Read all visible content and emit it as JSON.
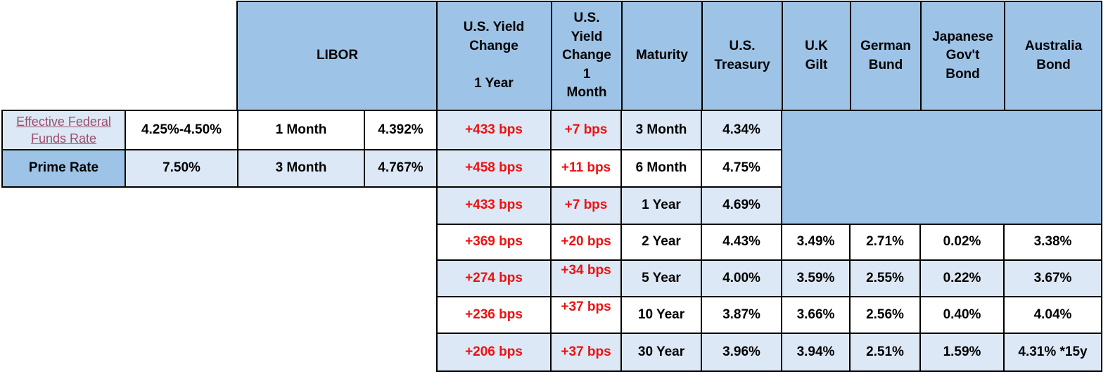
{
  "headers": {
    "libor": "LIBOR",
    "us_yield_change_1y": [
      "U.S. Yield",
      "Change",
      "",
      "1 Year"
    ],
    "us_yield_change_1m": [
      "U.S.",
      "Yield",
      "Change",
      "1",
      "Month"
    ],
    "maturity": "Maturity",
    "us_treasury": [
      "U.S.",
      "Treasury"
    ],
    "uk_gilt": [
      "U.K",
      "Gilt"
    ],
    "german_bund": [
      "German",
      "Bund"
    ],
    "japanese_bond": [
      "Japanese",
      "Gov't",
      "Bond"
    ],
    "australia_bond": [
      "Australia",
      "Bond"
    ]
  },
  "rates": [
    {
      "label": [
        "Effective Federal",
        "Funds Rate"
      ],
      "value": "4.25%-4.50%",
      "libor_term": "1 Month",
      "libor_value": "4.392%"
    },
    {
      "label": [
        "Prime Rate"
      ],
      "value": "7.50%",
      "libor_term": "3 Month",
      "libor_value": "4.767%"
    }
  ],
  "yields": [
    {
      "change_1y": "+433 bps",
      "change_1m": "+7 bps",
      "maturity": "3 Month",
      "us_treasury": "4.34%"
    },
    {
      "change_1y": "+458 bps",
      "change_1m": "+11 bps",
      "maturity": "6 Month",
      "us_treasury": "4.75%"
    },
    {
      "change_1y": "+433 bps",
      "change_1m": "+7 bps",
      "maturity": "1 Year",
      "us_treasury": "4.69%"
    },
    {
      "change_1y": "+369 bps",
      "change_1m": "+20 bps",
      "maturity": "2 Year",
      "us_treasury": "4.43%",
      "uk_gilt": "3.49%",
      "german_bund": "2.71%",
      "japanese_bond": "0.02%",
      "australia_bond": "3.38%"
    },
    {
      "change_1y": "+274 bps",
      "change_1m": "+34 bps",
      "maturity": "5 Year",
      "us_treasury": "4.00%",
      "uk_gilt": "3.59%",
      "german_bund": "2.55%",
      "japanese_bond": "0.22%",
      "australia_bond": "3.67%"
    },
    {
      "change_1y": "+236 bps",
      "change_1m": "+37 bps",
      "maturity": "10 Year",
      "us_treasury": "3.87%",
      "uk_gilt": "3.66%",
      "german_bund": "2.56%",
      "japanese_bond": "0.40%",
      "australia_bond": "4.04%"
    },
    {
      "change_1y": "+206 bps",
      "change_1m": "+37 bps",
      "maturity": "30 Year",
      "us_treasury": "3.96%",
      "uk_gilt": "3.94%",
      "german_bund": "2.51%",
      "japanese_bond": "1.59%",
      "australia_bond": "4.31% *15y"
    }
  ],
  "colors": {
    "header_fill": "#9dc3e6",
    "light_fill": "#dce8f5",
    "change_text": "#ee1111",
    "link_text": "#9c4d6b"
  }
}
